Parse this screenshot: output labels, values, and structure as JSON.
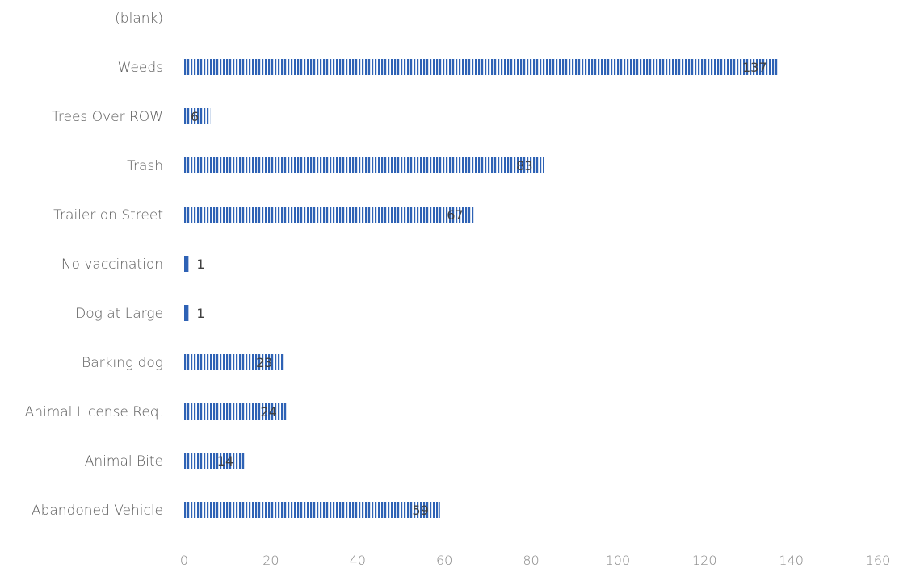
{
  "chart_data": {
    "type": "bar",
    "orientation": "horizontal",
    "title": "",
    "xlabel": "",
    "ylabel": "",
    "xlim": [
      0,
      160
    ],
    "x_ticks": [
      0,
      20,
      40,
      60,
      80,
      100,
      120,
      140,
      160
    ],
    "categories": [
      "(blank)",
      "Weeds",
      "Trees Over ROW",
      "Trash",
      "Trailer on Street",
      "No vaccination",
      "Dog at Large",
      "Barking dog",
      "Animal License Req.",
      "Animal Bite",
      "Abandoned Vehicle"
    ],
    "values": [
      null,
      137,
      6,
      83,
      67,
      1,
      1,
      23,
      24,
      14,
      59
    ],
    "data_labels": [
      "",
      "137",
      "6",
      "83",
      "67",
      "1",
      "1",
      "23",
      "24",
      "14",
      "59"
    ],
    "grid": false,
    "legend": "none",
    "bar_color": "#2e62b5",
    "bar_pattern": "vertical-stripes"
  }
}
